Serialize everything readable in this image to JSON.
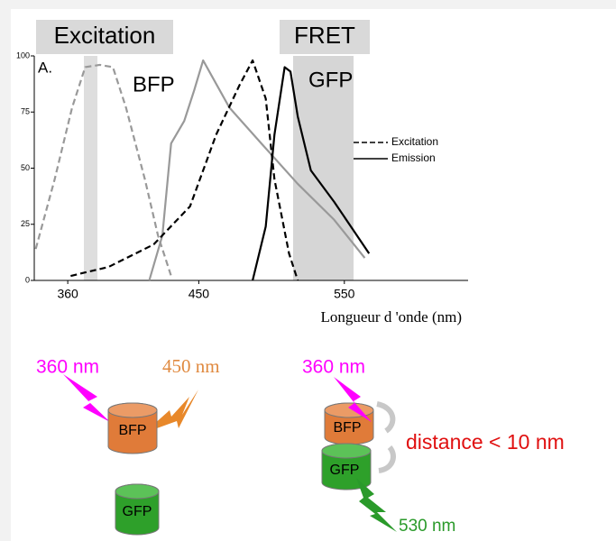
{
  "chart_data": {
    "type": "line",
    "header_left": "Excitation",
    "header_right": "FRET",
    "panel_label": "A.",
    "label_bfp": "BFP",
    "label_gfp": "GFP",
    "xlabel": "Longueur d 'onde (nm)",
    "xlim": [
      337,
      635
    ],
    "ylim": [
      0,
      100
    ],
    "xticks": [
      360,
      450,
      550
    ],
    "yticks": [
      0,
      25,
      50,
      75,
      100
    ],
    "legend": [
      {
        "name": "Excitation",
        "dash": true
      },
      {
        "name": "Emission",
        "dash": false
      }
    ],
    "series": [
      {
        "color": "#999999",
        "dash": true,
        "x": [
          338,
          351,
          363,
          372,
          382,
          391,
          400,
          413,
          422,
          431
        ],
        "values": [
          14,
          45,
          77,
          95,
          96,
          95,
          77,
          45,
          20,
          2
        ]
      },
      {
        "color": "#999999",
        "dash": false,
        "x": [
          416,
          425,
          431,
          440,
          447,
          453,
          459,
          471,
          493,
          518,
          543,
          564
        ],
        "values": [
          0,
          20,
          61,
          71,
          85,
          98,
          91,
          77,
          61,
          43,
          27,
          10
        ]
      },
      {
        "color": "#000000",
        "dash": true,
        "x": [
          362,
          388,
          419,
          444,
          462,
          478,
          487,
          496,
          502,
          512,
          518
        ],
        "values": [
          2,
          6,
          16,
          33,
          65,
          87,
          98,
          81,
          45,
          12,
          0
        ]
      },
      {
        "color": "#000000",
        "dash": false,
        "x": [
          487,
          496,
          502,
          509,
          513,
          518,
          527,
          543,
          567
        ],
        "values": [
          0,
          24,
          65,
          95,
          93,
          73,
          49,
          35,
          12
        ]
      }
    ]
  },
  "diagram": {
    "left": {
      "light_in": "360 nm",
      "light_out": "450 nm",
      "top": "BFP",
      "bottom": "GFP"
    },
    "right": {
      "light_in": "360 nm",
      "top": "BFP",
      "bottom": "GFP",
      "distance": "distance < 10 nm",
      "light_out": "530 nm"
    }
  }
}
